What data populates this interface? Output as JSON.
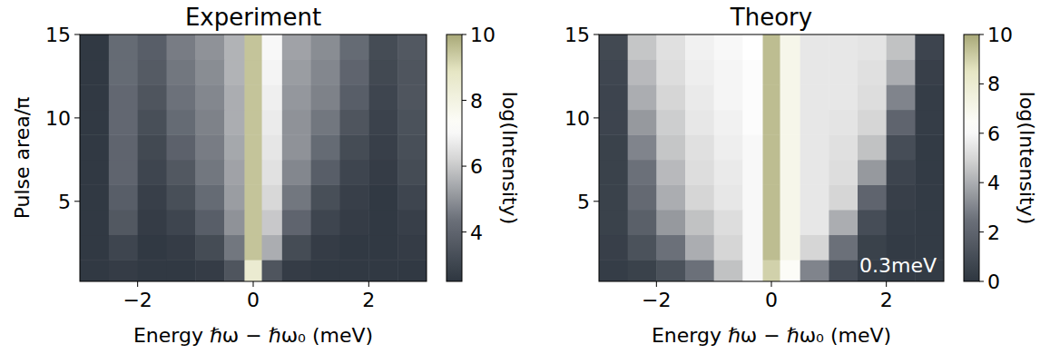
{
  "chart_data": [
    {
      "type": "heatmap",
      "title": "Experiment",
      "x_label": "Energy ℏω − ℏω₀ (meV)",
      "y_label": "Pulse area/π",
      "xlim": [
        -3,
        3
      ],
      "ylim": [
        0.2,
        15
      ],
      "xticks": [
        {
          "value": -2,
          "label": "−2"
        },
        0,
        2
      ],
      "yticks": [
        5,
        10,
        15
      ],
      "x_bins": [
        -3,
        -2.5,
        -2,
        -1.5,
        -1,
        -0.5,
        -0.15,
        0.15,
        0.5,
        1,
        1.5,
        2,
        2.5,
        3
      ],
      "y_bins": [
        0.2,
        1.5,
        3,
        4.5,
        6,
        7.5,
        9,
        10.5,
        12,
        13.5,
        15
      ],
      "values": [
        [
          2.6,
          2.7,
          2.6,
          2.6,
          2.7,
          3.5,
          8.5,
          3.5,
          2.7,
          2.6,
          2.6,
          2.6,
          2.6
        ],
        [
          2.6,
          3.0,
          2.6,
          2.7,
          3.2,
          4.5,
          9.5,
          5.5,
          3.2,
          2.7,
          2.6,
          2.6,
          2.7
        ],
        [
          2.6,
          3.6,
          2.7,
          3.0,
          3.8,
          5.0,
          9.5,
          6.0,
          4.0,
          3.0,
          2.7,
          2.6,
          2.8
        ],
        [
          2.6,
          3.8,
          2.8,
          3.3,
          4.2,
          5.2,
          9.5,
          6.3,
          4.5,
          3.3,
          2.8,
          2.6,
          3.0
        ],
        [
          2.6,
          4.0,
          3.0,
          3.6,
          4.5,
          5.3,
          9.5,
          6.5,
          4.8,
          3.8,
          3.0,
          2.7,
          3.2
        ],
        [
          2.6,
          4.0,
          3.1,
          3.9,
          4.6,
          5.4,
          9.5,
          6.6,
          5.0,
          4.2,
          3.2,
          2.8,
          3.3
        ],
        [
          2.6,
          4.1,
          3.3,
          4.2,
          4.7,
          5.5,
          9.5,
          6.7,
          5.0,
          4.5,
          3.5,
          2.9,
          3.4
        ],
        [
          2.6,
          4.1,
          3.5,
          4.4,
          4.8,
          5.5,
          9.5,
          6.8,
          5.1,
          4.7,
          3.8,
          3.0,
          3.5
        ],
        [
          2.6,
          4.2,
          3.7,
          4.5,
          4.9,
          5.6,
          9.5,
          6.9,
          5.2,
          4.8,
          4.0,
          3.1,
          3.5
        ],
        [
          2.6,
          4.2,
          3.8,
          4.6,
          5.0,
          5.6,
          9.5,
          7.0,
          5.3,
          4.9,
          4.2,
          3.2,
          3.6
        ]
      ],
      "colorbar": {
        "label": "log(Intensity)",
        "range": [
          2.5,
          10
        ],
        "ticks": [
          4,
          6,
          8,
          10
        ]
      }
    },
    {
      "type": "heatmap",
      "title": "Theory",
      "x_label": "Energy ℏω − ℏω₀ (meV)",
      "xlim": [
        -3,
        3
      ],
      "ylim": [
        0.2,
        15
      ],
      "xticks": [
        {
          "value": -2,
          "label": "−2"
        },
        0,
        2
      ],
      "yticks": [
        5,
        10,
        15
      ],
      "x_bins": [
        -3,
        -2.5,
        -2,
        -1.5,
        -1,
        -0.5,
        -0.15,
        0.15,
        0.5,
        1,
        1.5,
        2,
        2.5,
        3
      ],
      "y_bins": [
        0.2,
        1.5,
        3,
        4.5,
        6,
        7.5,
        9,
        10.5,
        12,
        13.5,
        15
      ],
      "values": [
        [
          0.3,
          0.5,
          1.2,
          2.5,
          4.5,
          6,
          9,
          6.5,
          3,
          1,
          0.3,
          0.2,
          0.2
        ],
        [
          0.4,
          1.2,
          2.5,
          4,
          5,
          6,
          9.5,
          7,
          5,
          2.5,
          0.5,
          0.2,
          0.2
        ],
        [
          0.5,
          1.8,
          3.5,
          4.5,
          5.2,
          6,
          9.5,
          7,
          5.5,
          4,
          1,
          0.3,
          0.2
        ],
        [
          0.5,
          2.2,
          4,
          5,
          5.5,
          6,
          9.5,
          7,
          5.5,
          5,
          2,
          0.4,
          0.2
        ],
        [
          0.5,
          2.5,
          4.3,
          5.2,
          5.6,
          6,
          9.5,
          7,
          5.5,
          5.2,
          3.5,
          0.6,
          0.2
        ],
        [
          0.5,
          3,
          4.6,
          5.3,
          5.7,
          6,
          9.5,
          7,
          5.5,
          5.3,
          4.5,
          1,
          0.2
        ],
        [
          0.6,
          3.5,
          4.8,
          5.5,
          5.8,
          6.1,
          9.5,
          7,
          5.5,
          5.4,
          5,
          2,
          0.3
        ],
        [
          0.6,
          4,
          5,
          5.6,
          5.9,
          6.1,
          9.5,
          7,
          5.5,
          5.5,
          5.2,
          3,
          0.3
        ],
        [
          0.7,
          4.3,
          5.2,
          5.7,
          5.9,
          6.1,
          9.5,
          7,
          5.5,
          5.5,
          5.3,
          4,
          0.4
        ],
        [
          0.8,
          4.6,
          5.3,
          5.8,
          6,
          6.2,
          9.5,
          7,
          5.5,
          5.5,
          5.4,
          4.5,
          0.6
        ]
      ],
      "colorbar": {
        "label": "log(Intensity)",
        "range": [
          0,
          10
        ],
        "ticks": [
          0,
          2,
          4,
          6,
          8,
          10
        ]
      },
      "annotations": [
        "0.3meV"
      ]
    }
  ]
}
